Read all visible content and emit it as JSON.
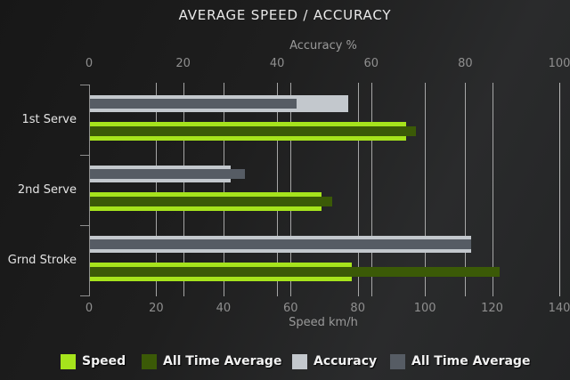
{
  "chart_data": {
    "type": "bar",
    "orientation": "horizontal",
    "title": "AVERAGE SPEED / ACCURACY",
    "categories": [
      "1st Serve",
      "2nd Serve",
      "Grnd Stroke"
    ],
    "axes": {
      "top": {
        "label": "Accuracy %",
        "min": 0,
        "max": 100,
        "ticks": [
          0,
          20,
          40,
          60,
          80,
          100
        ]
      },
      "bottom": {
        "label": "Speed km/h",
        "min": 0,
        "max": 140,
        "ticks": [
          0,
          20,
          40,
          60,
          80,
          100,
          120,
          140
        ]
      }
    },
    "grid": true,
    "legend_position": "bottom",
    "series": [
      {
        "name": "Speed",
        "axis": "bottom",
        "role": "outer",
        "color": "#a6e41c",
        "values": [
          94,
          69,
          78
        ]
      },
      {
        "name": "All Time Average",
        "axis": "bottom",
        "role": "inner",
        "color": "#3b5a07",
        "values": [
          97,
          72,
          122
        ]
      },
      {
        "name": "Accuracy",
        "axis": "top",
        "role": "outer",
        "color": "#c3c8cd",
        "values": [
          55,
          30,
          81
        ]
      },
      {
        "name": "All Time Average",
        "axis": "top",
        "role": "inner",
        "color": "#565c64",
        "values": [
          44,
          33,
          81
        ]
      }
    ],
    "colors": {
      "background_dark": "#1b1b1b",
      "background_light": "#2a2b2c",
      "gridline": "#bdbdbd",
      "axis": "#8f8f8f",
      "title_text": "#e9e9e9",
      "tick_text": "#8f8f8f",
      "category_text": "#e4e4e4",
      "legend_text": "#f2f2f2"
    }
  }
}
